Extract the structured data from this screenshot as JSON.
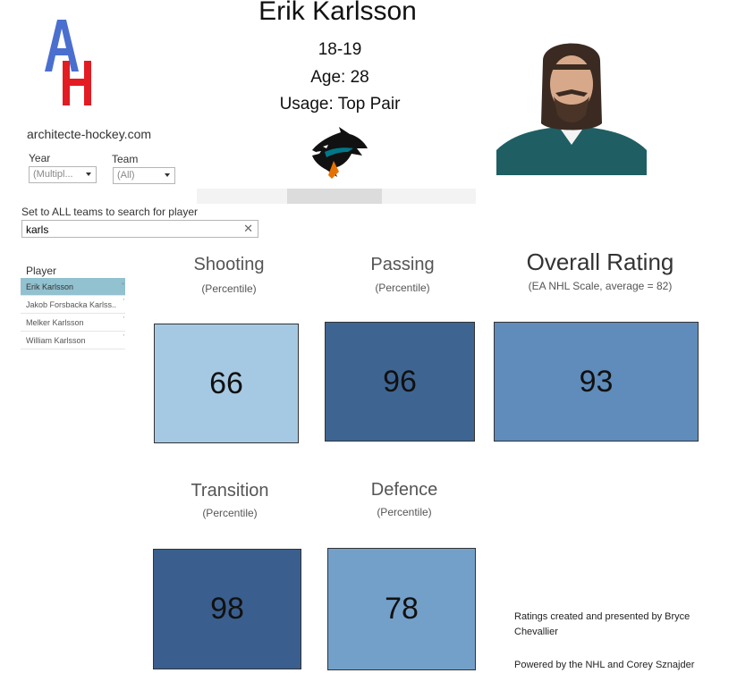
{
  "logo": {
    "letters": "AH",
    "color_a": "#4a6fcf",
    "color_h": "#e31b23"
  },
  "site": "architecte-hockey.com",
  "filters": {
    "year_label": "Year",
    "year_value": "(Multipl...",
    "team_label": "Team",
    "team_value": "(All)"
  },
  "search": {
    "hint": "Set to ALL teams to search for player",
    "value": "karls",
    "clear_glyph": "✕"
  },
  "player_list": {
    "header": "Player",
    "items": [
      {
        "name": "Erik Karlsson",
        "selected": true
      },
      {
        "name": "Jakob Forsbacka Karlss..",
        "selected": false
      },
      {
        "name": "Melker Karlsson",
        "selected": false
      },
      {
        "name": "William Karlsson",
        "selected": false
      }
    ]
  },
  "header": {
    "name": "Erik Karlsson",
    "season": "18-19",
    "age": "Age: 28",
    "usage": "Usage: Top Pair"
  },
  "metrics": {
    "shooting": {
      "title": "Shooting",
      "sub": "(Percentile)",
      "value": "66",
      "color": "#a6c9e3"
    },
    "passing": {
      "title": "Passing",
      "sub": "(Percentile)",
      "value": "96",
      "color": "#3e6592"
    },
    "overall": {
      "title": "Overall Rating",
      "sub": "(EA NHL Scale, average = 82)",
      "value": "93",
      "color": "#5f8cba"
    },
    "transition": {
      "title": "Transition",
      "sub": "(Percentile)",
      "value": "98",
      "color": "#3a5f8e"
    },
    "defence": {
      "title": "Defence",
      "sub": "(Percentile)",
      "value": "78",
      "color": "#73a0c9"
    }
  },
  "footer": {
    "line1": "Ratings created and presented by Bryce Chevallier",
    "line2": "Powered by the NHL and Corey Sznajder"
  }
}
